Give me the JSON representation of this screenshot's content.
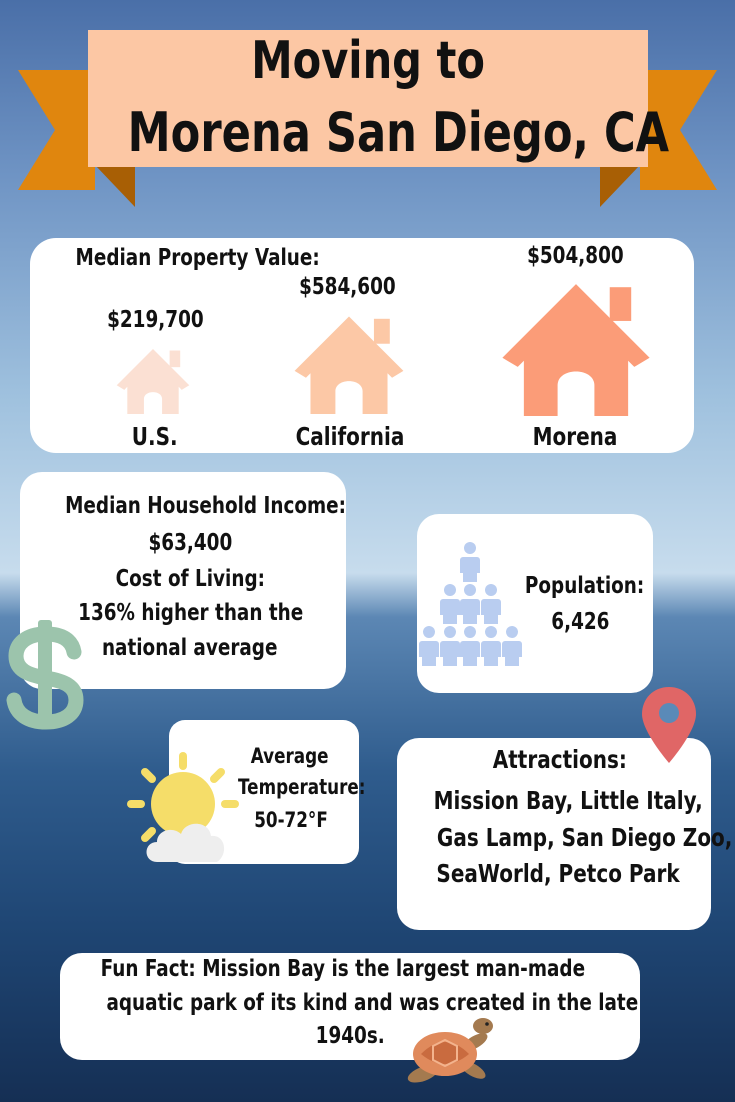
{
  "title": {
    "line1": "Moving to",
    "line2": "Morena San Diego, CA"
  },
  "property": {
    "heading": "Median Property Value:",
    "items": [
      {
        "label": "U.S.",
        "value": "$219,700",
        "color": "#fbe0d3"
      },
      {
        "label": "California",
        "value": "$584,600",
        "color": "#fcc8a6"
      },
      {
        "label": "Morena",
        "value": "$504,800",
        "color": "#fb9c78"
      }
    ]
  },
  "income": {
    "heading": "Median Household Income:",
    "value": "$63,400",
    "cost_heading": "Cost of Living:",
    "cost_line1": "136% higher than the",
    "cost_line2": "national average",
    "icon": "dollar-icon",
    "icon_color": "#9cc4ac"
  },
  "population": {
    "label": "Population:",
    "value": "6,426",
    "icon": "people-pyramid-icon",
    "icon_color": "#b9cdf0"
  },
  "temperature": {
    "line1": "Average",
    "line2": "Temperature:",
    "value": "50-72°F",
    "icon": "sun-cloud-icon"
  },
  "attractions": {
    "heading": "Attractions:",
    "lines": [
      "Mission Bay, Little Italy,",
      "Gas Lamp, San Diego Zoo,",
      "SeaWorld, Petco Park"
    ],
    "icon": "map-pin-icon",
    "icon_color": "#e06666"
  },
  "fun_fact": {
    "lines": [
      "Fun Fact: Mission Bay is the largest man-made",
      "aquatic park of its kind and was created in the late",
      "1940s."
    ],
    "icon": "sea-turtle-icon"
  },
  "colors": {
    "banner_ribbon": "#e0860e",
    "banner_bg": "#fcc7a4"
  }
}
